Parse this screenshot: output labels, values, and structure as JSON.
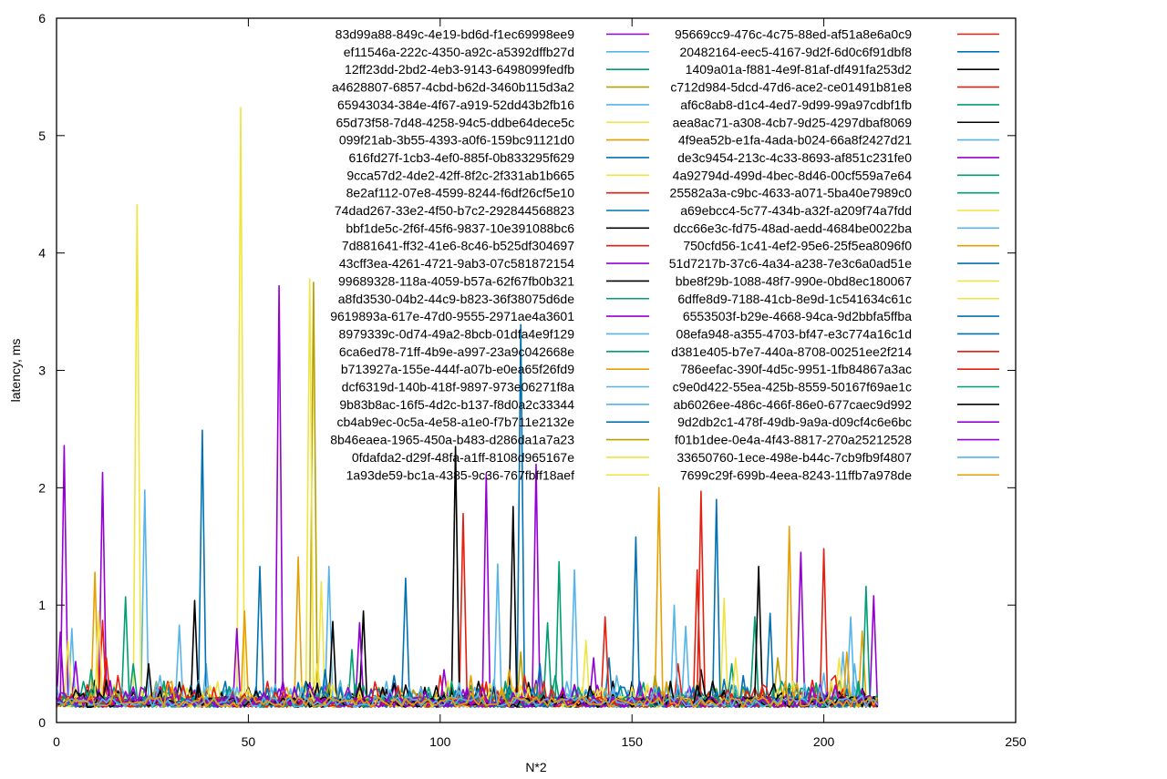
{
  "chart_data": {
    "type": "line",
    "xlabel": "N*2",
    "ylabel": "latency, ms",
    "xlim": [
      0,
      250
    ],
    "ylim": [
      0,
      6
    ],
    "xticks": [
      0,
      50,
      100,
      150,
      200,
      250
    ],
    "yticks": [
      0,
      1,
      2,
      3,
      4,
      5,
      6
    ],
    "grid": false,
    "legend_position": "top-right",
    "x_points": 215,
    "series": [
      {
        "name": "83d99a88-849c-4e19-bd6d-f1ec69998ee9",
        "color": "#9400d3",
        "spikes": [
          [
            2,
            2.36
          ],
          [
            12,
            2.13
          ],
          [
            58,
            3.72
          ],
          [
            112,
            2.12
          ],
          [
            125,
            2.2
          ],
          [
            213,
            1.08
          ]
        ]
      },
      {
        "name": "ef11546a-222c-4350-a92c-a5392dffb27d",
        "color": "#56b4e9",
        "spikes": [
          [
            4,
            0.8
          ],
          [
            23,
            1.98
          ],
          [
            39,
            0.5
          ],
          [
            115,
            1.35
          ],
          [
            200,
            0.42
          ]
        ]
      },
      {
        "name": "12ff23dd-2bd2-4eb3-9143-6498099fedfb",
        "color": "#009e73",
        "spikes": [
          [
            18,
            1.07
          ],
          [
            77,
            0.62
          ],
          [
            131,
            1.37
          ],
          [
            182,
            0.9
          ]
        ]
      },
      {
        "name": "a4628807-6857-4cbd-b62d-3460b115d3a2",
        "color": "#b8a000",
        "spikes": [
          [
            67,
            3.75
          ],
          [
            121,
            0.6
          ],
          [
            188,
            0.55
          ]
        ]
      },
      {
        "name": "65943034-384e-4f67-a919-52dd43b2fb16",
        "color": "#56b4e9",
        "spikes": [
          [
            32,
            0.83
          ],
          [
            71,
            1.33
          ],
          [
            164,
            0.82
          ],
          [
            205,
            0.6
          ]
        ]
      },
      {
        "name": "65d73f58-7d48-4258-94c5-ddbe64dece5c",
        "color": "#f0e442",
        "spikes": [
          [
            21,
            4.41
          ],
          [
            48,
            5.24
          ],
          [
            66,
            3.78
          ],
          [
            174,
            1.06
          ]
        ]
      },
      {
        "name": "099f21ab-3b55-4393-a0f6-159bc91121d0",
        "color": "#e69f00",
        "spikes": [
          [
            10,
            1.28
          ],
          [
            63,
            1.41
          ],
          [
            157,
            2.0
          ],
          [
            210,
            0.78
          ]
        ]
      },
      {
        "name": "616fd27f-1cb3-4ef0-885f-0b833295f629",
        "color": "#0072b2",
        "spikes": [
          [
            38,
            2.49
          ],
          [
            53,
            1.33
          ],
          [
            91,
            1.23
          ],
          [
            121,
            3.39
          ],
          [
            172,
            1.9
          ]
        ]
      },
      {
        "name": "9cca57d2-4de2-42ff-8f2c-2f331ab1b665",
        "color": "#f0e442",
        "spikes": [
          [
            69,
            1.2
          ],
          [
            138,
            0.7
          ],
          [
            204,
            0.55
          ]
        ]
      },
      {
        "name": "8e2af112-07e8-4599-8244-f6df26cf5e10",
        "color": "#e51e10",
        "spikes": [
          [
            12,
            0.87
          ],
          [
            106,
            1.78
          ],
          [
            168,
            1.97
          ],
          [
            200,
            1.48
          ]
        ]
      },
      {
        "name": "74dad267-33e2-4f50-b7c2-292844568823",
        "color": "#0072b2",
        "spikes": [
          [
            44,
            0.35
          ],
          [
            88,
            0.4
          ],
          [
            144,
            0.55
          ]
        ]
      },
      {
        "name": "bbf1de5c-2f6f-45f6-9837-10e391088bc6",
        "color": "#000000",
        "spikes": [
          [
            24,
            0.5
          ],
          [
            36,
            1.04
          ],
          [
            72,
            0.86
          ],
          [
            80,
            0.95
          ],
          [
            104,
            2.35
          ],
          [
            119,
            1.84
          ],
          [
            183,
            1.33
          ]
        ]
      },
      {
        "name": "7d881641-ff32-41e6-8c46-b525df304697",
        "color": "#e51e10",
        "spikes": [
          [
            55,
            0.35
          ],
          [
            100,
            0.4
          ],
          [
            162,
            0.5
          ]
        ]
      },
      {
        "name": "43cff3ea-4261-4721-9ab3-07c581872154",
        "color": "#9400d3",
        "spikes": [
          [
            5,
            0.52
          ],
          [
            79,
            0.85
          ],
          [
            140,
            0.55
          ],
          [
            194,
            1.45
          ]
        ]
      },
      {
        "name": "99689328-118a-4059-b57a-62f67fb0b321",
        "color": "#000000",
        "spikes": [
          [
            96,
            0.3
          ],
          [
            150,
            0.35
          ]
        ]
      },
      {
        "name": "a8fd3530-04b2-44c9-b823-36f38075d6de",
        "color": "#009e73",
        "spikes": [
          [
            15,
            0.3
          ],
          [
            130,
            0.4
          ],
          [
            211,
            1.16
          ]
        ]
      },
      {
        "name": "9619893a-617e-47d0-9555-2971ae4a3601",
        "color": "#9400d3",
        "spikes": [
          [
            47,
            0.8
          ],
          [
            101,
            0.45
          ],
          [
            152,
            0.35
          ]
        ]
      },
      {
        "name": "8979339c-0d74-49a2-8bcb-01dfa4e9f129",
        "color": "#56b4e9",
        "spikes": [
          [
            27,
            0.4
          ],
          [
            86,
            0.35
          ],
          [
            135,
            1.3
          ]
        ]
      },
      {
        "name": "6ca6ed78-71ff-4b9e-a997-23a9c042668e",
        "color": "#009e73",
        "spikes": [
          [
            9,
            0.45
          ],
          [
            128,
            0.85
          ],
          [
            176,
            0.5
          ]
        ]
      },
      {
        "name": "b713927a-155e-444f-a07b-e0ea65f26fd9",
        "color": "#e69f00",
        "spikes": [
          [
            60,
            0.3
          ],
          [
            118,
            0.45
          ],
          [
            191,
            1.67
          ]
        ]
      },
      {
        "name": "dcf6319d-140b-418f-9897-973e06271f8a",
        "color": "#56b4e9",
        "spikes": [
          [
            40,
            0.3
          ],
          [
            161,
            1.0
          ],
          [
            207,
            0.9
          ]
        ]
      },
      {
        "name": "9b83b8ac-16f5-4d2c-b137-f8d0a2c33344",
        "color": "#56b4e9",
        "spikes": [
          [
            17,
            0.3
          ],
          [
            92,
            0.3
          ],
          [
            146,
            0.4
          ]
        ]
      },
      {
        "name": "cb4ab9ec-0c5a-4e58-a1e0-f7b711e2132e",
        "color": "#0072b2",
        "spikes": [
          [
            70,
            0.45
          ],
          [
            151,
            1.58
          ],
          [
            186,
            0.93
          ]
        ]
      },
      {
        "name": "8b46eaea-1965-450a-b483-d286da1a7a23",
        "color": "#b8a000",
        "spikes": [
          [
            26,
            0.35
          ],
          [
            84,
            0.3
          ],
          [
            156,
            0.4
          ]
        ]
      },
      {
        "name": "0fdafda2-d29f-48fa-a1ff-8108d965167e",
        "color": "#f0e442",
        "spikes": [
          [
            3,
            0.7
          ],
          [
            31,
            0.3
          ],
          [
            177,
            0.55
          ]
        ]
      },
      {
        "name": "1a93de59-bc1a-4385-9c36-767fbff18aef",
        "color": "#f0e442",
        "spikes": [
          [
            42,
            0.35
          ],
          [
            109,
            0.3
          ],
          [
            195,
            0.3
          ]
        ]
      },
      {
        "name": "95669cc9-476c-4c75-88ed-af51a8e6a0c9",
        "color": "#e51e10",
        "spikes": [
          [
            29,
            0.35
          ],
          [
            143,
            0.9
          ],
          [
            203,
            0.4
          ]
        ]
      },
      {
        "name": "20482164-eec5-4167-9d2f-6d0c6f91dbf8",
        "color": "#0072b2",
        "spikes": [
          [
            62,
            0.3
          ],
          [
            126,
            0.5
          ],
          [
            179,
            0.4
          ]
        ]
      },
      {
        "name": "1409a01a-f881-4e9f-81af-df491fa253d2",
        "color": "#000000",
        "spikes": [
          [
            50,
            0.3
          ],
          [
            110,
            0.35
          ],
          [
            168,
            0.45
          ]
        ]
      },
      {
        "name": "c712d984-5dcd-47d6-ace2-ce01491b81e8",
        "color": "#e51e10",
        "spikes": [
          [
            13,
            0.55
          ],
          [
            122,
            0.4
          ],
          [
            167,
            1.3
          ]
        ]
      },
      {
        "name": "af6c8ab8-d1c4-4ed7-9d99-99a97cdbf1fb",
        "color": "#009e73",
        "spikes": [
          [
            7,
            0.35
          ],
          [
            97,
            0.3
          ],
          [
            189,
            0.35
          ]
        ]
      },
      {
        "name": "aea8ac71-a308-4cb7-9d25-4297dbaf8069",
        "color": "#000000",
        "spikes": [
          [
            35,
            0.3
          ],
          [
            113,
            0.3
          ],
          [
            171,
            0.35
          ]
        ]
      },
      {
        "name": "4f9ea52b-e1fa-4ada-b024-66a8f2427d21",
        "color": "#56b4e9",
        "spikes": [
          [
            56,
            0.3
          ],
          [
            133,
            0.35
          ],
          [
            208,
            0.5
          ]
        ]
      },
      {
        "name": "de3c9454-213c-4c33-8693-af851c231fe0",
        "color": "#9400d3",
        "spikes": [
          [
            1,
            0.77
          ],
          [
            76,
            0.3
          ],
          [
            154,
            0.3
          ]
        ]
      },
      {
        "name": "4a92794d-499d-4bec-8d46-00cf559a7e64",
        "color": "#009e73",
        "spikes": [
          [
            45,
            0.3
          ],
          [
            103,
            0.35
          ],
          [
            184,
            0.3
          ]
        ]
      },
      {
        "name": "25582a3a-c9bc-4633-a071-5ba40e7989c0",
        "color": "#009e73",
        "spikes": [
          [
            20,
            0.5
          ],
          [
            117,
            0.35
          ],
          [
            198,
            0.3
          ]
        ]
      },
      {
        "name": "a69ebcc4-5c77-434b-a32f-a209f74a7fdd",
        "color": "#f0e442",
        "spikes": [
          [
            64,
            0.35
          ],
          [
            137,
            0.3
          ],
          [
            202,
            0.35
          ]
        ]
      },
      {
        "name": "dcc66e3c-fd75-48ad-aedd-4684be0022ba",
        "color": "#56b4e9",
        "spikes": [
          [
            33,
            0.3
          ],
          [
            95,
            0.3
          ],
          [
            159,
            0.3
          ]
        ]
      },
      {
        "name": "750cfd56-1c41-4ef2-95e6-25f5ea8096f0",
        "color": "#e69f00",
        "spikes": [
          [
            49,
            0.95
          ],
          [
            108,
            0.4
          ],
          [
            206,
            0.6
          ]
        ]
      },
      {
        "name": "51d7217b-37c6-4a34-a238-7e3c6a0ad51e",
        "color": "#0072b2",
        "spikes": [
          [
            52,
            0.3
          ],
          [
            124,
            0.3
          ],
          [
            180,
            0.3
          ]
        ]
      },
      {
        "name": "bbe8f29b-1088-48f7-990e-0bd8ec180067",
        "color": "#f0e442",
        "spikes": [
          [
            11,
            0.95
          ],
          [
            123,
            0.3
          ],
          [
            192,
            0.35
          ]
        ]
      },
      {
        "name": "6dffe8d9-7188-41cb-8e9d-1c541634c61c",
        "color": "#f0e442",
        "spikes": [
          [
            68,
            0.5
          ],
          [
            142,
            0.3
          ]
        ]
      },
      {
        "name": "6553503f-b29e-4668-94ca-9d2bbfa5ffba",
        "color": "#0072b2",
        "spikes": [
          [
            37,
            0.35
          ],
          [
            139,
            0.3
          ],
          [
            196,
            0.3
          ]
        ]
      },
      {
        "name": "08efa948-a355-4703-bf47-e3c774a16c1d",
        "color": "#0072b2",
        "spikes": [
          [
            74,
            0.3
          ],
          [
            148,
            0.3
          ]
        ]
      },
      {
        "name": "d381e405-b7e7-440a-8708-00251ee2f214",
        "color": "#e51e10",
        "spikes": [
          [
            16,
            0.4
          ],
          [
            127,
            0.35
          ],
          [
            185,
            0.3
          ]
        ]
      },
      {
        "name": "786eefac-390f-4d5c-9951-1fb84867a3ac",
        "color": "#e51e10",
        "spikes": [
          [
            41,
            0.3
          ],
          [
            114,
            0.3
          ]
        ]
      },
      {
        "name": "c9e0d422-55ea-425b-8559-50167f69ae1c",
        "color": "#009e73",
        "spikes": [
          [
            28,
            0.35
          ],
          [
            136,
            0.3
          ],
          [
            209,
            0.35
          ]
        ]
      },
      {
        "name": "ab6026ee-486c-466f-86e0-677caec9d992",
        "color": "#000000",
        "spikes": [
          [
            85,
            0.3
          ],
          [
            160,
            0.35
          ]
        ]
      },
      {
        "name": "9d2db2c1-478f-49db-9a9a-d09cf4c6e6bc",
        "color": "#9400d3",
        "spikes": [
          [
            59,
            0.35
          ],
          [
            132,
            0.3
          ],
          [
            197,
            0.3
          ]
        ]
      },
      {
        "name": "f01b1dee-0e4a-4f43-8817-270a25212528",
        "color": "#9400d3",
        "spikes": [
          [
            22,
            0.3
          ],
          [
            107,
            0.3
          ]
        ]
      },
      {
        "name": "33650760-1ece-498e-b44c-7cb9fb9f4807",
        "color": "#56b4e9",
        "spikes": [
          [
            46,
            0.3
          ],
          [
            145,
            0.3
          ],
          [
            199,
            0.3
          ]
        ]
      },
      {
        "name": "7699c29f-699b-4eea-8243-11ffb7a978de",
        "color": "#e69f00",
        "spikes": [
          [
            30,
            0.35
          ],
          [
            116,
            0.3
          ],
          [
            190,
            0.35
          ]
        ]
      }
    ]
  }
}
